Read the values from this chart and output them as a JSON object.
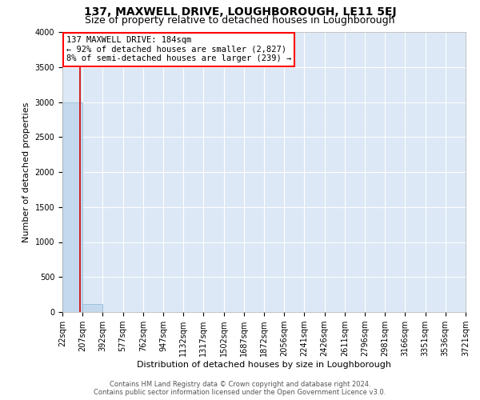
{
  "title1": "137, MAXWELL DRIVE, LOUGHBOROUGH, LE11 5EJ",
  "title2": "Size of property relative to detached houses in Loughborough",
  "xlabel": "Distribution of detached houses by size in Loughborough",
  "ylabel": "Number of detached properties",
  "footer1": "Contains HM Land Registry data © Crown copyright and database right 2024.",
  "footer2": "Contains public sector information licensed under the Open Government Licence v3.0.",
  "annotation_title": "137 MAXWELL DRIVE: 184sqm",
  "annotation_line1": "← 92% of detached houses are smaller (2,827)",
  "annotation_line2": "8% of semi-detached houses are larger (239) →",
  "property_size": 184,
  "bar_edges": [
    22,
    207,
    392,
    577,
    762,
    947,
    1132,
    1317,
    1502,
    1687,
    1872,
    2056,
    2241,
    2426,
    2611,
    2796,
    2981,
    3166,
    3351,
    3536,
    3721
  ],
  "bar_heights": [
    3000,
    115,
    5,
    3,
    2,
    1,
    1,
    1,
    1,
    1,
    0,
    0,
    0,
    0,
    0,
    0,
    0,
    0,
    0,
    0
  ],
  "bar_color": "#c5d9ee",
  "bar_edgecolor": "#8ab4d4",
  "marker_color": "#cc0000",
  "background_color": "#dce8f5",
  "grid_color": "#ffffff",
  "ylim": [
    0,
    4000
  ],
  "yticks": [
    0,
    500,
    1000,
    1500,
    2000,
    2500,
    3000,
    3500,
    4000
  ],
  "title1_fontsize": 10,
  "title2_fontsize": 9,
  "tick_fontsize": 7,
  "xlabel_fontsize": 8,
  "ylabel_fontsize": 8,
  "annotation_fontsize": 7.5,
  "footer_fontsize": 6
}
